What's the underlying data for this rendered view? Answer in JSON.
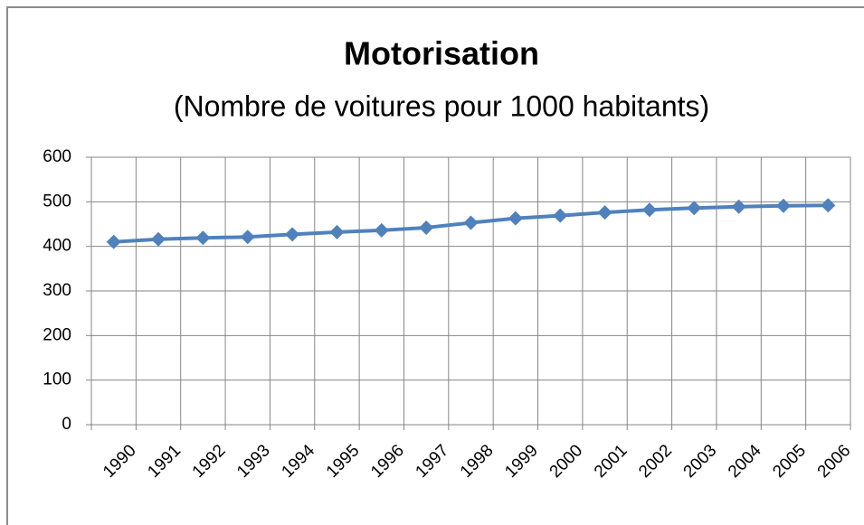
{
  "chart_data": {
    "type": "line",
    "title": "Motorisation",
    "subtitle": "(Nombre de voitures pour 1000 habitants)",
    "categories": [
      "1990",
      "1991",
      "1992",
      "1993",
      "1994",
      "1995",
      "1996",
      "1997",
      "1998",
      "1999",
      "2000",
      "2001",
      "2002",
      "2003",
      "2004",
      "2005",
      "2006"
    ],
    "values": [
      410,
      416,
      419,
      421,
      427,
      432,
      436,
      442,
      453,
      463,
      469,
      476,
      482,
      486,
      489,
      491,
      492
    ],
    "color": "#4f81bd",
    "ylim": [
      0,
      600
    ],
    "yticks": [
      0,
      100,
      200,
      300,
      400,
      500,
      600
    ],
    "grid": true
  }
}
